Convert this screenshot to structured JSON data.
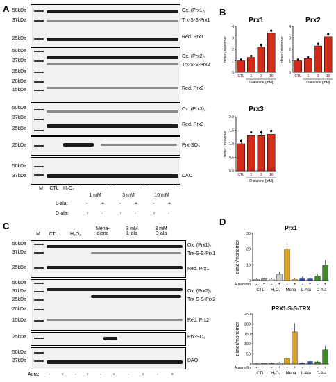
{
  "panels": {
    "A": "A",
    "B": "B",
    "C": "C",
    "D": "D"
  },
  "panelA": {
    "blot1": {
      "mw": [
        "50kDa",
        "37kDa",
        "25kDa"
      ],
      "labels": [
        "Ox. (Prx1)₂",
        "Trx-S-S-Prx1",
        "Red. Prx1"
      ]
    },
    "blot2": {
      "mw": [
        "50kDa",
        "37kDa",
        "25kDa",
        "20kDa",
        "15kDa"
      ],
      "labels": [
        "Ox. (Prx2)₂",
        "Trx-S-S-Prx2",
        "Red. Prx2"
      ]
    },
    "blot3": {
      "mw": [
        "50kDa",
        "37kDa",
        "25kDa"
      ],
      "labels": [
        "Ox. (Prx3)₂",
        "Red. Prx3"
      ]
    },
    "blot4": {
      "mw": [
        "25kDa"
      ],
      "labels": [
        "Prx-SO₃"
      ]
    },
    "blot5": {
      "mw": [
        "50kDa",
        "37kDa"
      ],
      "labels": [
        "DAO"
      ]
    },
    "lanes": [
      "M",
      "CTL",
      "H₂O₂"
    ],
    "doses": [
      "1 mM",
      "3 mM",
      "10 mM"
    ],
    "rows": [
      {
        "label": "L-ala:",
        "signs": [
          "-",
          "+",
          "-",
          "+",
          "-",
          "+"
        ]
      },
      {
        "label": "D-ala:",
        "signs": [
          "+",
          "-",
          "+",
          "-",
          "+",
          "-"
        ]
      }
    ]
  },
  "panelC": {
    "blot1": {
      "mw": [
        "50kDa",
        "37kDa",
        "25kDa"
      ],
      "labels": [
        "Ox. (Prx1)₂",
        "Trx-S-S-Prx1",
        "Red. Prx1"
      ]
    },
    "blot2": {
      "mw": [
        "50kDa",
        "37kDa",
        "25kDa",
        "20kDa",
        "15kDa"
      ],
      "labels": [
        "Ox. (Prx2)₂",
        "Trx-S-S-Prx2",
        "Red. Prx2"
      ]
    },
    "blot3": {
      "mw": [
        "25kDa"
      ],
      "labels": [
        "Prx-SO₃"
      ]
    },
    "blot4": {
      "mw": [
        "50kDa",
        "37kDa"
      ],
      "labels": [
        "DAO"
      ]
    },
    "lanes": [
      "M",
      "CTL",
      "H₂O₂",
      "Mena-\ndione",
      "3 mM\nL-ala",
      "3 mM\nD-ala"
    ],
    "aura": {
      "label": "Aura:",
      "signs": [
        "-",
        "+",
        "-",
        "+",
        "-",
        "+",
        "-",
        "+",
        "-",
        "+"
      ]
    }
  },
  "chart_data": [
    {
      "type": "bar",
      "title": "Prx1",
      "ylabel": "dimer / monomer",
      "xlabel": "D-alanine [mM]",
      "categories": [
        "CTL",
        "1",
        "3",
        "10"
      ],
      "values": [
        1.0,
        1.3,
        2.2,
        3.4
      ],
      "ylim": [
        0,
        4
      ],
      "yticks": [
        "0",
        "1",
        "2",
        "3",
        "4"
      ],
      "color": "#d42a1a"
    },
    {
      "type": "bar",
      "title": "Prx2",
      "ylabel": "dimer / monomer",
      "xlabel": "D-alanine [mM]",
      "categories": [
        "CTL",
        "1",
        "3",
        "10"
      ],
      "values": [
        1.0,
        1.2,
        2.3,
        3.1
      ],
      "ylim": [
        0,
        4
      ],
      "yticks": [
        "0",
        "1",
        "2",
        "3",
        "4"
      ],
      "color": "#d42a1a"
    },
    {
      "type": "bar",
      "title": "Prx3",
      "ylabel": "dimer / monomer",
      "xlabel": "D-alanine [mM]",
      "categories": [
        "CTL",
        "1",
        "3",
        "10"
      ],
      "values": [
        1.0,
        1.3,
        1.3,
        1.35
      ],
      "ylim": [
        0,
        2
      ],
      "yticks": [
        "0.0",
        "0.5",
        "1.0",
        "1.5",
        "2.0"
      ],
      "color": "#d42a1a"
    },
    {
      "type": "bar",
      "title": "Prx1",
      "ylabel": "dimer/monomer",
      "categories": [
        "CTL",
        "CTL",
        "H₂O₂",
        "H₂O₂",
        "Mena",
        "Mena",
        "L-Ala",
        "L-Ala",
        "D-Ala",
        "D-Ala"
      ],
      "values": [
        1,
        1.5,
        1,
        4,
        20,
        1,
        1.5,
        1.5,
        3,
        10
      ],
      "ylim": [
        0,
        30
      ],
      "yticks": [
        "0",
        "10",
        "20",
        "30"
      ],
      "xticklabels": [
        "CTL",
        "H₂O₂",
        "Mena",
        "L-Ala",
        "D-Ala"
      ],
      "auranofin": {
        "label": "Auranofin",
        "signs": [
          "-",
          "+",
          "-",
          "+",
          "-",
          "+",
          "-",
          "+",
          "-",
          "+"
        ]
      }
    },
    {
      "type": "bar",
      "title": "PRX1-S-S-TRX",
      "ylabel": "dimer/monomer",
      "categories": [
        "CTL",
        "CTL",
        "H₂O₂",
        "H₂O₂",
        "Mena",
        "Mena",
        "L-Ala",
        "L-Ala",
        "D-Ala",
        "D-Ala"
      ],
      "values": [
        1,
        2,
        2,
        5,
        28,
        160,
        4,
        12,
        10,
        70
      ],
      "ylim": [
        0,
        250
      ],
      "yticks": [
        "0",
        "50",
        "100",
        "150",
        "200",
        "250"
      ],
      "xticklabels": [
        "CTL",
        "H₂O₂",
        "Mena",
        "L-Ala",
        "D-Ala"
      ],
      "auranofin": {
        "label": "Auranofin",
        "signs": [
          "-",
          "+",
          "-",
          "+",
          "-",
          "+",
          "-",
          "+",
          "-",
          "+"
        ]
      }
    }
  ]
}
